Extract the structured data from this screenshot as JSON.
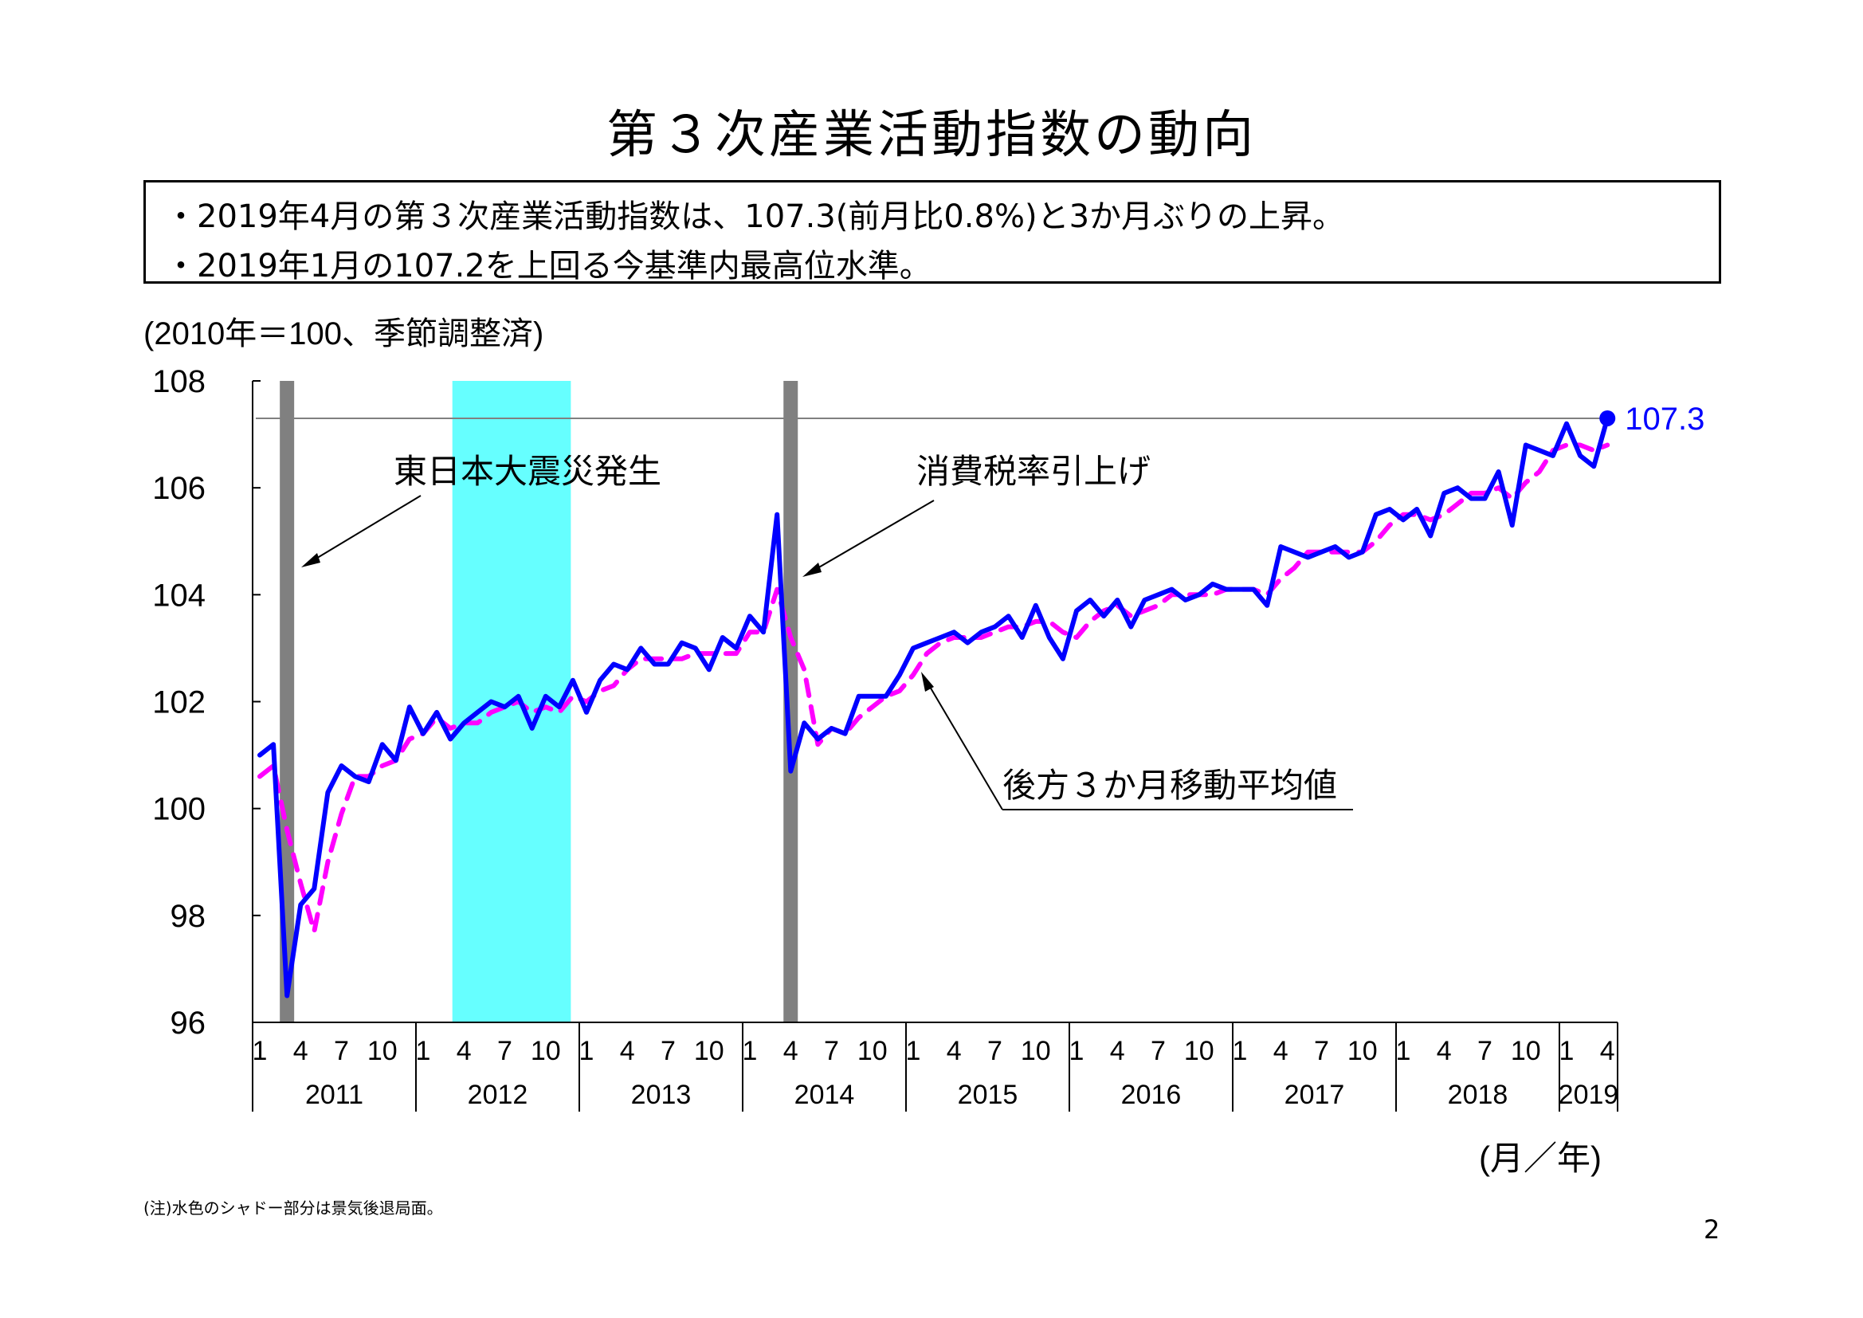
{
  "title": "第３次産業活動指数の動向",
  "summary": {
    "line1": "・2019年4月の第３次産業活動指数は、107.3(前月比0.8%)と3か月ぶりの上昇。",
    "line2": "・2019年1月の107.2を上回る今基準内最高位水準。"
  },
  "note": "(注)水色のシャドー部分は景気後退局面。",
  "page_number": "2",
  "chart_data": {
    "type": "line",
    "unit_label": "(2010年＝100、季節調整済)",
    "xlabel": "(月／年)",
    "ylim": [
      96,
      108
    ],
    "y_ticks": [
      "96",
      "98",
      "100",
      "102",
      "104",
      "106",
      "108"
    ],
    "years": [
      "2011",
      "2012",
      "2013",
      "2014",
      "2015",
      "2016",
      "2017",
      "2018",
      "2019"
    ],
    "month_ticks": [
      "1",
      "4",
      "7",
      "10"
    ],
    "last_year_month_ticks": [
      "1",
      "4"
    ],
    "months": [
      "2011-01",
      "2011-02",
      "2011-03",
      "2011-04",
      "2011-05",
      "2011-06",
      "2011-07",
      "2011-08",
      "2011-09",
      "2011-10",
      "2011-11",
      "2011-12",
      "2012-01",
      "2012-02",
      "2012-03",
      "2012-04",
      "2012-05",
      "2012-06",
      "2012-07",
      "2012-08",
      "2012-09",
      "2012-10",
      "2012-11",
      "2012-12",
      "2013-01",
      "2013-02",
      "2013-03",
      "2013-04",
      "2013-05",
      "2013-06",
      "2013-07",
      "2013-08",
      "2013-09",
      "2013-10",
      "2013-11",
      "2013-12",
      "2014-01",
      "2014-02",
      "2014-03",
      "2014-04",
      "2014-05",
      "2014-06",
      "2014-07",
      "2014-08",
      "2014-09",
      "2014-10",
      "2014-11",
      "2014-12",
      "2015-01",
      "2015-02",
      "2015-03",
      "2015-04",
      "2015-05",
      "2015-06",
      "2015-07",
      "2015-08",
      "2015-09",
      "2015-10",
      "2015-11",
      "2015-12",
      "2016-01",
      "2016-02",
      "2016-03",
      "2016-04",
      "2016-05",
      "2016-06",
      "2016-07",
      "2016-08",
      "2016-09",
      "2016-10",
      "2016-11",
      "2016-12",
      "2017-01",
      "2017-02",
      "2017-03",
      "2017-04",
      "2017-05",
      "2017-06",
      "2017-07",
      "2017-08",
      "2017-09",
      "2017-10",
      "2017-11",
      "2017-12",
      "2018-01",
      "2018-02",
      "2018-03",
      "2018-04",
      "2018-05",
      "2018-06",
      "2018-07",
      "2018-08",
      "2018-09",
      "2018-10",
      "2018-11",
      "2018-12",
      "2019-01",
      "2019-02",
      "2019-03",
      "2019-04"
    ],
    "series": [
      {
        "name": "index",
        "color": "#0000ff",
        "style": "solid",
        "values": [
          101.0,
          101.2,
          96.5,
          98.2,
          98.5,
          100.3,
          100.8,
          100.6,
          100.5,
          101.2,
          100.9,
          101.9,
          101.4,
          101.8,
          101.3,
          101.6,
          101.8,
          102.0,
          101.9,
          102.1,
          101.5,
          102.1,
          101.9,
          102.4,
          101.8,
          102.4,
          102.7,
          102.6,
          103.0,
          102.7,
          102.7,
          103.1,
          103.0,
          102.6,
          103.2,
          103.0,
          103.6,
          103.3,
          105.5,
          100.7,
          101.6,
          101.3,
          101.5,
          101.4,
          102.1,
          102.1,
          102.1,
          102.5,
          103.0,
          103.1,
          103.2,
          103.3,
          103.1,
          103.3,
          103.4,
          103.6,
          103.2,
          103.8,
          103.2,
          102.8,
          103.7,
          103.9,
          103.6,
          103.9,
          103.4,
          103.9,
          104.0,
          104.1,
          103.9,
          104.0,
          104.2,
          104.1,
          104.1,
          104.1,
          103.8,
          104.9,
          104.8,
          104.7,
          104.8,
          104.9,
          104.7,
          104.8,
          105.5,
          105.6,
          105.4,
          105.6,
          105.1,
          105.9,
          106.0,
          105.8,
          105.8,
          106.3,
          105.3,
          106.8,
          106.7,
          106.6,
          107.2,
          106.6,
          106.4,
          107.3
        ]
      },
      {
        "name": "後方３か月移動平均値",
        "color": "#ff00ff",
        "style": "dashed",
        "values": [
          100.6,
          100.8,
          99.6,
          98.6,
          97.7,
          99.0,
          99.9,
          100.6,
          100.6,
          100.8,
          100.9,
          101.3,
          101.4,
          101.7,
          101.5,
          101.6,
          101.6,
          101.8,
          101.9,
          102.0,
          101.8,
          101.9,
          101.8,
          102.1,
          102.0,
          102.2,
          102.3,
          102.6,
          102.8,
          102.8,
          102.8,
          102.8,
          102.9,
          102.9,
          102.9,
          102.9,
          103.3,
          103.3,
          104.1,
          103.2,
          102.6,
          101.2,
          101.5,
          101.4,
          101.7,
          101.9,
          102.1,
          102.2,
          102.5,
          102.9,
          103.1,
          103.2,
          103.2,
          103.2,
          103.3,
          103.4,
          103.4,
          103.5,
          103.5,
          103.3,
          103.2,
          103.5,
          103.7,
          103.8,
          103.6,
          103.7,
          103.8,
          104.0,
          104.0,
          104.0,
          104.0,
          104.1,
          104.1,
          104.1,
          104.0,
          104.3,
          104.5,
          104.8,
          104.8,
          104.8,
          104.8,
          104.8,
          105.0,
          105.3,
          105.5,
          105.5,
          105.4,
          105.5,
          105.7,
          105.9,
          105.9,
          106.0,
          105.8,
          106.1,
          106.3,
          106.7,
          106.8,
          106.8,
          106.7,
          106.8
        ]
      }
    ],
    "latest_label": "107.3",
    "reference_line": 107.3,
    "recession_shade": {
      "from": "2012-04",
      "to": "2012-11",
      "color": "#66ffff"
    },
    "events": [
      {
        "label": "東日本大震災発生",
        "month": "2011-03",
        "bar_color": "#808080"
      },
      {
        "label": "消費税率引上げ",
        "month": "2014-04",
        "bar_color": "#808080"
      }
    ],
    "moving_average_label": "後方３か月移動平均値"
  }
}
